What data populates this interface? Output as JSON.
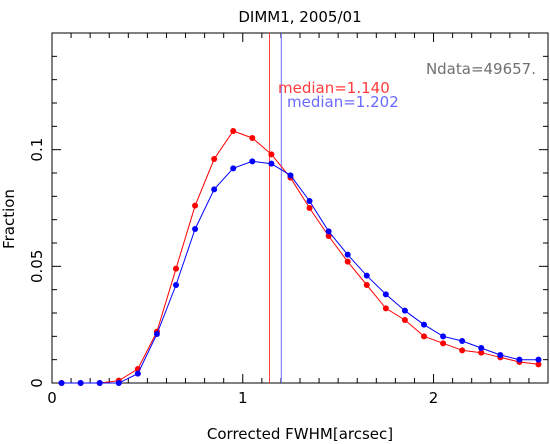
{
  "chart_data": {
    "type": "line",
    "title": "DIMM1, 2005/01",
    "xlabel": "Corrected FWHM[arcsec]",
    "ylabel": "Fraction",
    "xlim": [
      0,
      2.6
    ],
    "ylim": [
      0,
      0.15
    ],
    "x_ticks": [
      {
        "value": 0,
        "label": "0"
      },
      {
        "value": 1,
        "label": "1"
      },
      {
        "value": 2,
        "label": "2"
      }
    ],
    "y_ticks": [
      {
        "value": 0,
        "label": "0"
      },
      {
        "value": 0.05,
        "label": "0.05"
      },
      {
        "value": 0.1,
        "label": "0.1"
      }
    ],
    "x_minor_step": 0.1,
    "y_minor_step": 0.01,
    "grid": false,
    "annotations": {
      "ndata": {
        "text": "Ndata=49657.",
        "color": "#707070"
      },
      "median_red": {
        "text": "median=1.140",
        "color": "#ff3b3b",
        "x": 1.14
      },
      "median_blue": {
        "text": "median=1.202",
        "color": "#6a6aff",
        "x": 1.202
      }
    },
    "series": [
      {
        "color": "#ff0000",
        "x": [
          0.05,
          0.15,
          0.25,
          0.35,
          0.45,
          0.55,
          0.65,
          0.75,
          0.85,
          0.95,
          1.05,
          1.15,
          1.25,
          1.35,
          1.45,
          1.55,
          1.65,
          1.75,
          1.85,
          1.95,
          2.05,
          2.15,
          2.25,
          2.35,
          2.45,
          2.55
        ],
        "values": [
          0.0,
          0.0,
          0.0,
          0.001,
          0.006,
          0.022,
          0.049,
          0.076,
          0.096,
          0.108,
          0.105,
          0.098,
          0.088,
          0.075,
          0.063,
          0.052,
          0.042,
          0.032,
          0.027,
          0.02,
          0.017,
          0.014,
          0.013,
          0.011,
          0.009,
          0.008
        ]
      },
      {
        "color": "#0000ff",
        "x": [
          0.05,
          0.15,
          0.25,
          0.35,
          0.45,
          0.55,
          0.65,
          0.75,
          0.85,
          0.95,
          1.05,
          1.15,
          1.25,
          1.35,
          1.45,
          1.55,
          1.65,
          1.75,
          1.85,
          1.95,
          2.05,
          2.15,
          2.25,
          2.35,
          2.45,
          2.55
        ],
        "values": [
          0.0,
          0.0,
          0.0,
          0.0,
          0.004,
          0.021,
          0.042,
          0.066,
          0.083,
          0.092,
          0.095,
          0.094,
          0.089,
          0.078,
          0.065,
          0.055,
          0.046,
          0.038,
          0.031,
          0.025,
          0.02,
          0.018,
          0.015,
          0.012,
          0.01,
          0.01
        ]
      }
    ]
  }
}
